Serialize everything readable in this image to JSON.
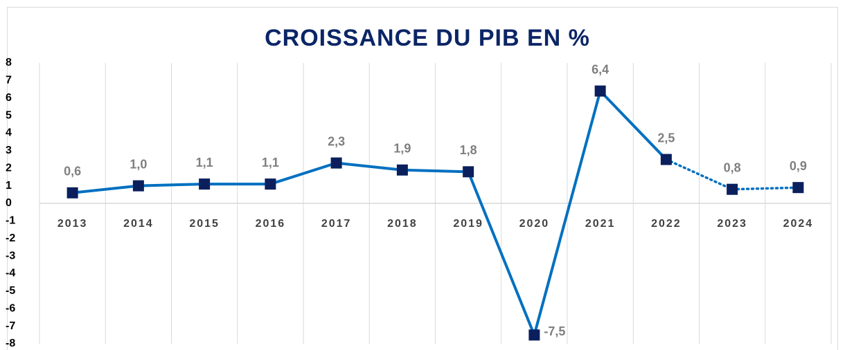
{
  "chart_data": {
    "type": "line",
    "title": "CROISSANCE DU PIB EN %",
    "categories": [
      "2013",
      "2014",
      "2015",
      "2016",
      "2017",
      "2018",
      "2019",
      "2020",
      "2021",
      "2022",
      "2023",
      "2024"
    ],
    "series": [
      {
        "name": "PIB",
        "color": "#0070c0",
        "marker_color": "#0a1f5c",
        "values": [
          0.6,
          1.0,
          1.1,
          1.1,
          2.3,
          1.9,
          1.8,
          -7.5,
          6.4,
          2.5,
          0.8,
          0.9
        ],
        "value_labels": [
          "0,6",
          "1,0",
          "1,1",
          "1,1",
          "2,3",
          "1,9",
          "1,8",
          "-7,5",
          "6,4",
          "2,5",
          "0,8",
          "0,9"
        ]
      }
    ],
    "dotted_from": "2022",
    "ylim": [
      -8,
      8
    ],
    "yticks": [
      -8,
      -7,
      -6,
      -5,
      -4,
      -3,
      -2,
      -1,
      0,
      1,
      2,
      3,
      4,
      5,
      6,
      7,
      8
    ],
    "vertical_grid": true
  }
}
